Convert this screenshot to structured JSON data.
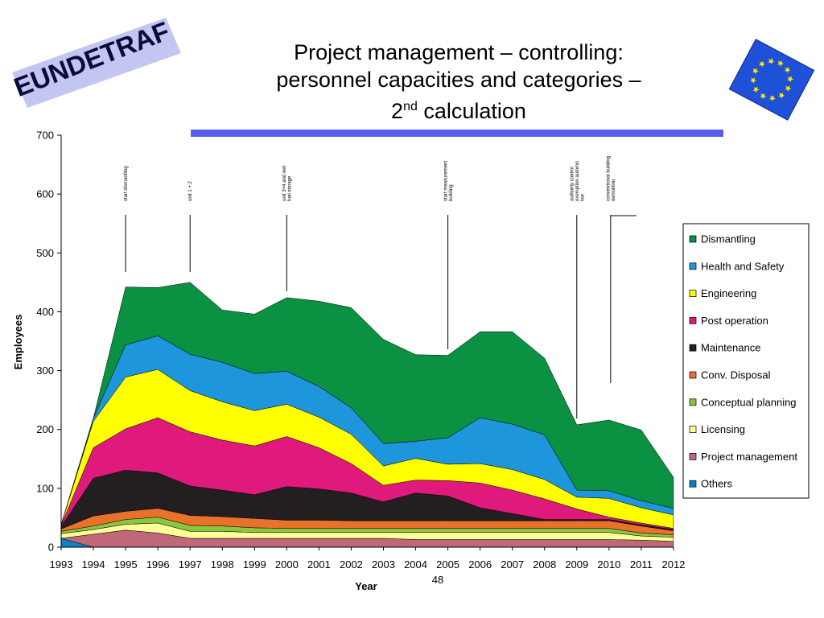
{
  "logo": {
    "text": "EUNDETRAF"
  },
  "flag": {
    "name": "eu-flag"
  },
  "title": {
    "line1": "Project management – controlling:",
    "line2": "personnel capacities and categories –",
    "ordinal_num": "2",
    "ordinal_suffix": "nd",
    "line3_rest": " calculation"
  },
  "slide_number": "48",
  "chart_data": {
    "type": "area",
    "stacked": true,
    "title": "",
    "xlabel": "Year",
    "ylabel": "Employees",
    "ylim": [
      0,
      700
    ],
    "yticks": [
      0,
      100,
      200,
      300,
      400,
      500,
      600,
      700
    ],
    "x": [
      "1993",
      "1994",
      "1995",
      "1996",
      "1997",
      "1998",
      "1999",
      "2000",
      "2001",
      "2002",
      "2003",
      "2004",
      "2005",
      "2006",
      "2007",
      "2008",
      "2009",
      "2010",
      "2011",
      "2012"
    ],
    "legend_position": "right",
    "series": [
      {
        "name": "Others",
        "color": "#0a82c8",
        "values": [
          15,
          0,
          0,
          0,
          0,
          0,
          0,
          0,
          0,
          0,
          0,
          0,
          0,
          0,
          0,
          0,
          0,
          0,
          0,
          0
        ]
      },
      {
        "name": "Project management",
        "color": "#c06878",
        "values": [
          0,
          22,
          29,
          24,
          15,
          15,
          15,
          15,
          15,
          15,
          15,
          13,
          13,
          13,
          13,
          13,
          13,
          13,
          12,
          10
        ]
      },
      {
        "name": "Licensing",
        "color": "#ffff99",
        "values": [
          8,
          8,
          10,
          17,
          12,
          12,
          10,
          10,
          10,
          10,
          10,
          12,
          12,
          12,
          12,
          12,
          12,
          12,
          7,
          7
        ]
      },
      {
        "name": "Conceptual planning",
        "color": "#8cc63f",
        "values": [
          4,
          6,
          8,
          10,
          10,
          9,
          8,
          7,
          7,
          7,
          7,
          7,
          7,
          7,
          7,
          7,
          7,
          7,
          5,
          4
        ]
      },
      {
        "name": "Conv. Disposal",
        "color": "#e8722a",
        "values": [
          4,
          17,
          14,
          15,
          17,
          16,
          16,
          14,
          14,
          13,
          13,
          13,
          13,
          13,
          13,
          13,
          13,
          13,
          12,
          7
        ]
      },
      {
        "name": "Maintenance",
        "color": "#231f20",
        "values": [
          4,
          64,
          70,
          60,
          50,
          45,
          40,
          57,
          53,
          47,
          32,
          47,
          42,
          22,
          12,
          2,
          2,
          2,
          2,
          2
        ]
      },
      {
        "name": "Post operation",
        "color": "#e0197d",
        "values": [
          2,
          52,
          70,
          94,
          92,
          85,
          83,
          85,
          70,
          50,
          28,
          22,
          26,
          42,
          40,
          35,
          18,
          4,
          3,
          2
        ]
      },
      {
        "name": "Engineering",
        "color": "#ffff00",
        "values": [
          1,
          45,
          88,
          82,
          70,
          65,
          60,
          55,
          52,
          50,
          33,
          37,
          28,
          33,
          35,
          33,
          20,
          32,
          26,
          23
        ]
      },
      {
        "name": "Health and Safety",
        "color": "#1e96dc",
        "values": [
          0,
          5,
          55,
          57,
          62,
          67,
          63,
          56,
          52,
          45,
          38,
          29,
          45,
          78,
          77,
          76,
          12,
          13,
          12,
          11
        ]
      },
      {
        "name": "Dismantling",
        "color": "#0a9141",
        "values": [
          0,
          0,
          98,
          82,
          122,
          89,
          101,
          125,
          145,
          170,
          177,
          147,
          140,
          146,
          157,
          130,
          111,
          120,
          120,
          53
        ]
      }
    ],
    "legend_order": [
      "Dismantling",
      "Health and Safety",
      "Engineering",
      "Post operation",
      "Maintenance",
      "Conv. Disposal",
      "Conceptual planning",
      "Licensing",
      "Project management",
      "Others"
    ],
    "annotations": [
      {
        "year": "1995",
        "lines": [
          "start dismantling"
        ]
      },
      {
        "year": "1997",
        "lines": [
          "unit 1 + 2"
        ]
      },
      {
        "year": "2000",
        "lines": [
          "unit 3+4 and wet",
          "fuel storage"
        ]
      },
      {
        "year": "2005",
        "lines": [
          "start measurement",
          "building"
        ]
      },
      {
        "year": "2009",
        "lines": [
          "authority control",
          "exemption automic",
          "law"
        ]
      },
      {
        "year": "2010",
        "lines": [
          "conventional building",
          "demolition"
        ]
      }
    ]
  }
}
